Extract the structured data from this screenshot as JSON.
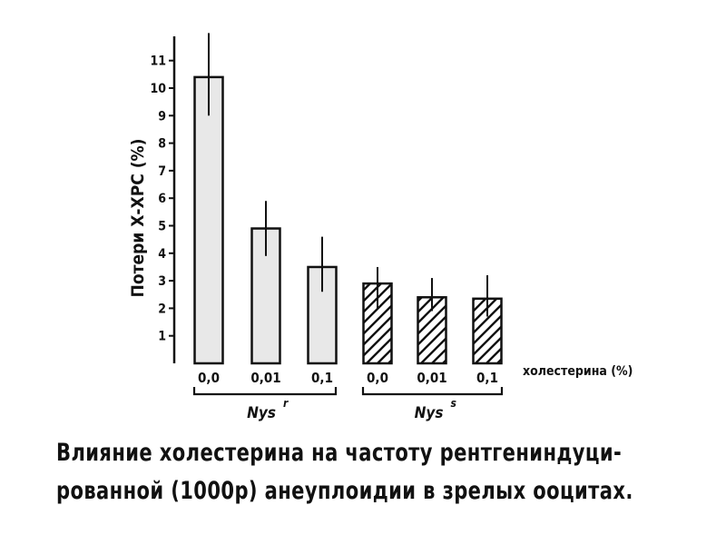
{
  "chart_data": {
    "type": "bar",
    "ylabel": "Потери Х-ХРС (%)",
    "xlabel": "холестерина (%)",
    "y_ticks": [
      "1",
      "2",
      "3",
      "4",
      "5",
      "6",
      "7",
      "8",
      "9",
      "10",
      "11"
    ],
    "ylim": [
      0,
      12
    ],
    "grid": false,
    "categories": [
      "0,0",
      "0,01",
      "0,1",
      "0,0",
      "0,01",
      "0,1"
    ],
    "values": [
      10.4,
      4.9,
      3.5,
      2.9,
      2.4,
      2.35
    ],
    "error_top": [
      12.0,
      5.9,
      4.6,
      3.5,
      3.1,
      3.2
    ],
    "error_bottom": [
      9.0,
      3.9,
      2.6,
      2.0,
      1.9,
      1.7
    ],
    "groups": [
      {
        "label": "Nys",
        "superscript": "r",
        "pattern": "solid-light-gray",
        "bars": [
          0,
          1,
          2
        ]
      },
      {
        "label": "Nys",
        "superscript": "s",
        "pattern": "diagonal-hatch",
        "bars": [
          3,
          4,
          5
        ]
      }
    ],
    "colors": {
      "bar_fill": "#e8e8e8",
      "stroke": "#111111"
    }
  },
  "caption": {
    "line1": "Влияние холестерина на частоту рентгениндуци-",
    "line2": "рованной (1000р) анеуплоидии в зрелых ооцитах."
  }
}
